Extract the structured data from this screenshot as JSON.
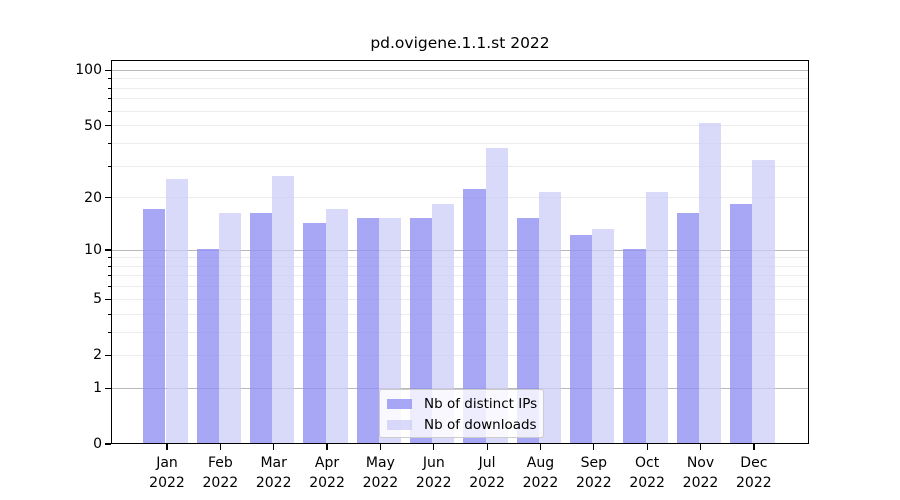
{
  "title": "pd.ovigene.1.1.st 2022",
  "y_axis": {
    "tick_labels": [
      "100",
      "50",
      "20",
      "10",
      "5",
      "2",
      "1",
      "0"
    ],
    "tick_values": [
      100,
      50,
      20,
      10,
      5,
      2,
      1,
      0
    ],
    "decade_gridlines": [
      100,
      10,
      1
    ],
    "light_major_gridlines": [
      50,
      20,
      5,
      2
    ],
    "minor_gridlines": [
      90,
      80,
      70,
      60,
      40,
      30,
      9,
      8,
      7,
      6,
      4,
      3
    ]
  },
  "x_axis": {
    "months": [
      "Jan",
      "Feb",
      "Mar",
      "Apr",
      "May",
      "Jun",
      "Jul",
      "Aug",
      "Sep",
      "Oct",
      "Nov",
      "Dec"
    ],
    "year": "2022"
  },
  "legend": {
    "items": [
      {
        "label": "Nb of distinct IPs",
        "color": "#a9a9f4"
      },
      {
        "label": "Nb of downloads",
        "color": "#d8d8f8"
      }
    ]
  },
  "colors": {
    "distinct_ips_bar": "rgba(145,145,243,0.80)",
    "downloads_bar": "rgba(203,203,247,0.72)",
    "axis": "#000000",
    "grid_decade": "#b9b9b9",
    "grid_light": "#ececec",
    "legend_border": "#cccccc"
  },
  "chart_data": {
    "type": "bar",
    "title": "pd.ovigene.1.1.st 2022",
    "y_scale": "log1p",
    "ylim": [
      0,
      100
    ],
    "grid": true,
    "legend_position": "lower center",
    "categories": [
      "Jan 2022",
      "Feb 2022",
      "Mar 2022",
      "Apr 2022",
      "May 2022",
      "Jun 2022",
      "Jul 2022",
      "Aug 2022",
      "Sep 2022",
      "Oct 2022",
      "Nov 2022",
      "Dec 2022"
    ],
    "series": [
      {
        "name": "Nb of distinct IPs",
        "color": "#a9a9f4",
        "fill": "rgba(145,145,243,0.80)",
        "values": [
          17,
          10,
          16,
          14,
          15,
          15,
          22,
          15,
          12,
          10,
          16,
          18
        ]
      },
      {
        "name": "Nb of downloads",
        "color": "#d8d8f8",
        "fill": "rgba(203,203,247,0.72)",
        "values": [
          25,
          16,
          26,
          17,
          15,
          18,
          37,
          21,
          13,
          21,
          51,
          32
        ]
      }
    ]
  }
}
